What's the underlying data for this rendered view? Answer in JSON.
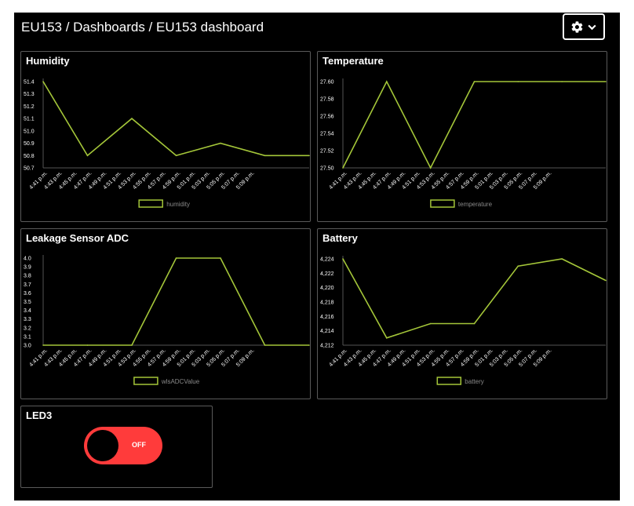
{
  "header": {
    "title": "EU153 / Dashboards / EU153 dashboard",
    "settings_icon": "gear-icon",
    "dropdown_icon": "chevron-down-icon"
  },
  "colors": {
    "background": "#000000",
    "line": "#a4c639",
    "text": "#ffffff",
    "border": "#5a5a5a",
    "toggle_off": "#ff3b3b"
  },
  "widgets": {
    "humidity": {
      "title": "Humidity",
      "chart_data": {
        "type": "line",
        "categories": [
          "4:41 p.m.",
          "4:43 p.m.",
          "4:45 p.m.",
          "4:47 p.m.",
          "4:49 p.m.",
          "4:51 p.m.",
          "4:53 p.m.",
          "4:55 p.m.",
          "4:57 p.m.",
          "4:59 p.m.",
          "5:01 p.m.",
          "5:03 p.m.",
          "5:05 p.m.",
          "5:07 p.m.",
          "5:09 p.m."
        ],
        "yticks": [
          "50.7",
          "50.8",
          "50.9",
          "51.0",
          "51.1",
          "51.2",
          "51.3",
          "51.4"
        ],
        "ylim": [
          50.7,
          51.4
        ],
        "series": [
          {
            "name": "humidity",
            "points": [
              [
                0,
                51.4
              ],
              [
                3,
                50.8
              ],
              [
                6,
                51.1
              ],
              [
                9,
                50.8
              ],
              [
                12,
                50.9
              ],
              [
                15,
                50.8
              ],
              [
                18,
                50.8
              ]
            ]
          }
        ],
        "xmax": 18,
        "legend": "bottom"
      }
    },
    "temperature": {
      "title": "Temperature",
      "chart_data": {
        "type": "line",
        "categories": [
          "4:41 p.m.",
          "4:43 p.m.",
          "4:45 p.m.",
          "4:47 p.m.",
          "4:49 p.m.",
          "4:51 p.m.",
          "4:53 p.m.",
          "4:55 p.m.",
          "4:57 p.m.",
          "4:59 p.m.",
          "5:01 p.m.",
          "5:03 p.m.",
          "5:05 p.m.",
          "5:07 p.m.",
          "5:09 p.m."
        ],
        "yticks": [
          "27.50",
          "27.52",
          "27.54",
          "27.56",
          "27.58",
          "27.60"
        ],
        "ylim": [
          27.5,
          27.6
        ],
        "series": [
          {
            "name": "temperature",
            "points": [
              [
                0,
                27.5
              ],
              [
                3,
                27.6
              ],
              [
                6,
                27.5
              ],
              [
                9,
                27.6
              ],
              [
                12,
                27.6
              ],
              [
                15,
                27.6
              ],
              [
                18,
                27.6
              ]
            ]
          }
        ],
        "xmax": 18,
        "legend": "bottom"
      }
    },
    "leakage": {
      "title": "Leakage Sensor ADC",
      "chart_data": {
        "type": "line",
        "categories": [
          "4:41 p.m.",
          "4:43 p.m.",
          "4:45 p.m.",
          "4:47 p.m.",
          "4:49 p.m.",
          "4:51 p.m.",
          "4:53 p.m.",
          "4:55 p.m.",
          "4:57 p.m.",
          "4:59 p.m.",
          "5:01 p.m.",
          "5:03 p.m.",
          "5:05 p.m.",
          "5:07 p.m.",
          "5:09 p.m."
        ],
        "yticks": [
          "3.0",
          "3.1",
          "3.2",
          "3.3",
          "3.4",
          "3.5",
          "3.6",
          "3.7",
          "3.8",
          "3.9",
          "4.0"
        ],
        "ylim": [
          3.0,
          4.0
        ],
        "series": [
          {
            "name": "wlsADCValue",
            "points": [
              [
                0,
                3.0
              ],
              [
                3,
                3.0
              ],
              [
                6,
                3.0
              ],
              [
                9,
                4.0
              ],
              [
                12,
                4.0
              ],
              [
                15,
                3.0
              ],
              [
                18,
                3.0
              ]
            ]
          }
        ],
        "xmax": 18,
        "legend": "bottom"
      }
    },
    "battery": {
      "title": "Battery",
      "chart_data": {
        "type": "line",
        "categories": [
          "4:41 p.m.",
          "4:43 p.m.",
          "4:45 p.m.",
          "4:47 p.m.",
          "4:49 p.m.",
          "4:51 p.m.",
          "4:53 p.m.",
          "4:55 p.m.",
          "4:57 p.m.",
          "4:59 p.m.",
          "5:01 p.m.",
          "5:03 p.m.",
          "5:05 p.m.",
          "5:07 p.m.",
          "5:09 p.m."
        ],
        "yticks": [
          "4,212",
          "4,214",
          "4,216",
          "4,218",
          "4,220",
          "4,222",
          "4,224"
        ],
        "ylim": [
          4212,
          4224
        ],
        "series": [
          {
            "name": "battery",
            "points": [
              [
                0,
                4224
              ],
              [
                3,
                4213
              ],
              [
                6,
                4215
              ],
              [
                9,
                4215
              ],
              [
                12,
                4223
              ],
              [
                15,
                4224
              ],
              [
                18,
                4221
              ]
            ]
          }
        ],
        "xmax": 18,
        "legend": "bottom"
      }
    },
    "led3": {
      "title": "LED3",
      "state": "OFF"
    }
  }
}
